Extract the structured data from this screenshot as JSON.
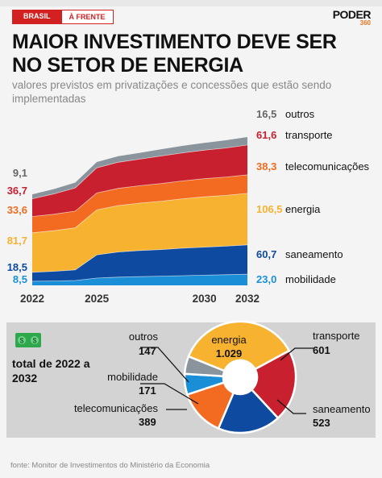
{
  "header": {
    "tag_1": "BRASIL",
    "tag_2": "À FRENTE",
    "logo_main": "PODER",
    "logo_sub": "360"
  },
  "title": "MAIOR INVESTIMENTO DEVE SER NO SETOR DE ENERGIA",
  "subtitle": "valores previstos em privatizações e concessões que estão sendo implementadas",
  "source": "fonte: Monitor de Investimentos do Ministério da Economia",
  "colors": {
    "mobilidade": "#1a8fd8",
    "saneamento": "#0d4aa0",
    "energia": "#f7b230",
    "telecomunicacoes": "#f26b21",
    "transporte": "#c8202f",
    "outros": "#8a949c"
  },
  "chart_data": [
    {
      "type": "area",
      "stacked": true,
      "x_ticks": [
        "2022",
        "2025",
        "2030",
        "2032"
      ],
      "x": [
        2022,
        2023,
        2024,
        2025,
        2026,
        2027,
        2028,
        2029,
        2030,
        2031,
        2032
      ],
      "series": [
        {
          "name": "mobilidade",
          "key": "mobilidade",
          "start_label": "8,5",
          "end_label": "23,0",
          "values": [
            8.5,
            9,
            10,
            15,
            17,
            18,
            19,
            20,
            21,
            22,
            23.0
          ]
        },
        {
          "name": "saneamento",
          "key": "saneamento",
          "start_label": "18,5",
          "end_label": "60,7",
          "values": [
            18.5,
            20,
            22,
            48,
            52,
            54,
            55,
            57,
            58,
            59,
            60.7
          ]
        },
        {
          "name": "energia",
          "key": "energia",
          "start_label": "81,7",
          "end_label": "106,5",
          "values": [
            81.7,
            84,
            87,
            93,
            96,
            98,
            100,
            102,
            104,
            105,
            106.5
          ]
        },
        {
          "name": "telecomunicações",
          "key": "telecomunicacoes",
          "start_label": "33,6",
          "end_label": "38,3",
          "values": [
            33.6,
            34,
            34.5,
            35,
            35.5,
            36,
            36.5,
            37,
            37.5,
            38,
            38.3
          ]
        },
        {
          "name": "transporte",
          "key": "transporte",
          "start_label": "36,7",
          "end_label": "61,6",
          "values": [
            36.7,
            42,
            48,
            52,
            54,
            55,
            57,
            58,
            59,
            60,
            61.6
          ]
        },
        {
          "name": "outros",
          "key": "outros",
          "start_label": "9,1",
          "end_label": "16,5",
          "values": [
            9.1,
            10,
            11,
            12,
            12.5,
            13,
            14,
            14.5,
            15,
            16,
            16.5
          ]
        }
      ]
    },
    {
      "type": "pie",
      "donut": true,
      "title": "total de 2022 a 2032",
      "slices": [
        {
          "name": "energia",
          "key": "energia",
          "value": 1029,
          "label": "1.029"
        },
        {
          "name": "transporte",
          "key": "transporte",
          "value": 601,
          "label": "601"
        },
        {
          "name": "saneamento",
          "key": "saneamento",
          "value": 523,
          "label": "523"
        },
        {
          "name": "telecomunicações",
          "key": "telecomunicacoes",
          "value": 389,
          "label": "389"
        },
        {
          "name": "mobilidade",
          "key": "mobilidade",
          "value": 171,
          "label": "171"
        },
        {
          "name": "outros",
          "key": "outros",
          "value": 147,
          "label": "147"
        }
      ]
    }
  ]
}
